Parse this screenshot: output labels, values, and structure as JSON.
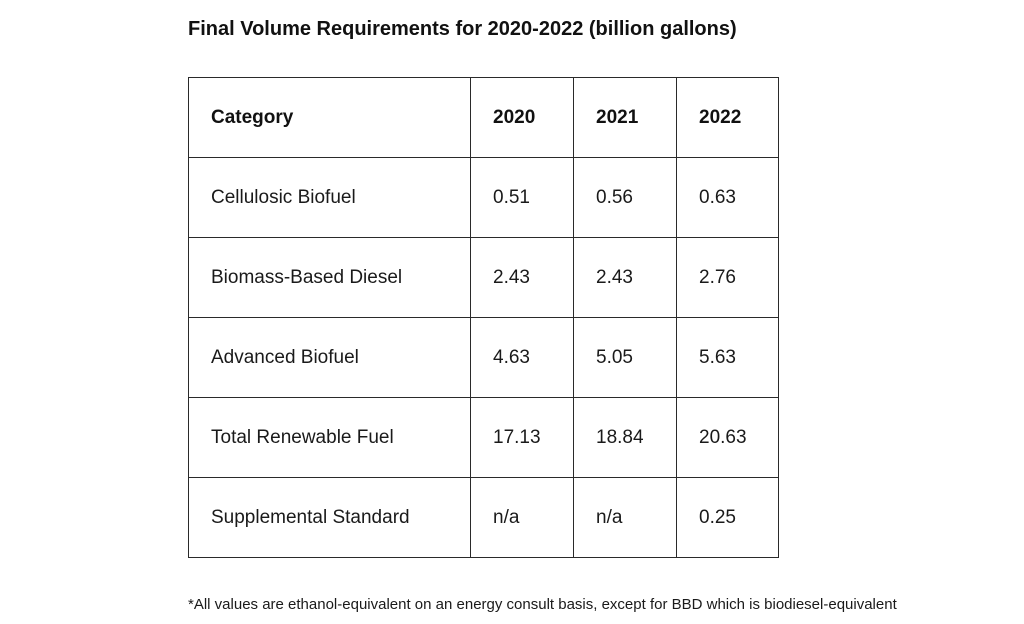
{
  "title": "Final Volume Requirements for 2020-2022 (billion gallons)",
  "table": {
    "headers": [
      "Category",
      "2020",
      "2021",
      "2022"
    ],
    "rows": [
      [
        "Cellulosic Biofuel",
        "0.51",
        "0.56",
        "0.63"
      ],
      [
        "Biomass-Based Diesel",
        "2.43",
        "2.43",
        "2.76"
      ],
      [
        "Advanced Biofuel",
        "4.63",
        "5.05",
        "5.63"
      ],
      [
        "Total Renewable Fuel",
        "17.13",
        "18.84",
        "20.63"
      ],
      [
        "Supplemental Standard",
        "n/a",
        "n/a",
        "0.25"
      ]
    ]
  },
  "footnote": "*All values are ethanol-equivalent on an energy consult basis, except for BBD which is biodiesel-equivalent"
}
